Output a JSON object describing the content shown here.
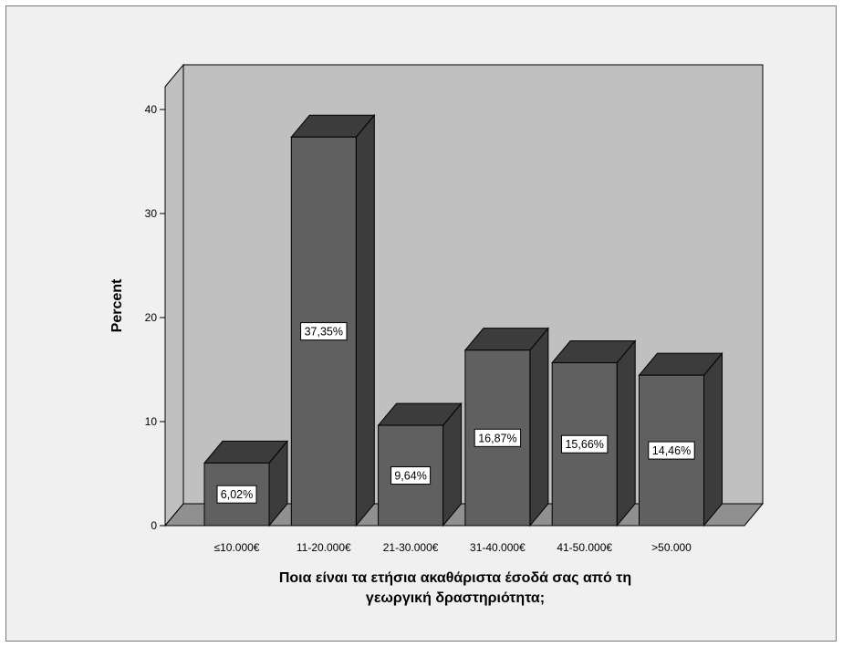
{
  "chart_data": {
    "type": "bar",
    "style": "3d",
    "categories": [
      "≤10.000€",
      "11-20.000€",
      "21-30.000€",
      "31-40.000€",
      "41-50.000€",
      ">50.000"
    ],
    "values": [
      6.02,
      37.35,
      9.64,
      16.87,
      15.66,
      14.46
    ],
    "data_labels": [
      "6,02%",
      "37,35%",
      "9,64%",
      "16,87%",
      "15,66%",
      "14,46%"
    ],
    "ylabel": "Percent",
    "xlabel_lines": [
      "Ποια είναι τα ετήσια ακαθάριστα έσοδά σας από τη",
      "γεωργική δραστηριότητα;"
    ],
    "ylim": [
      0,
      44
    ],
    "yticks": [
      0,
      10,
      20,
      30,
      40
    ],
    "grid": false,
    "colors": {
      "background": "#f0f0f0",
      "plot_back_wall": "#c0c0c0",
      "floor": "#909090",
      "bar_front": "#606060",
      "bar_top": "#3c3c3c",
      "bar_side": "#3c3c3c",
      "outline": "#000000",
      "label_box": "#ffffff"
    }
  }
}
